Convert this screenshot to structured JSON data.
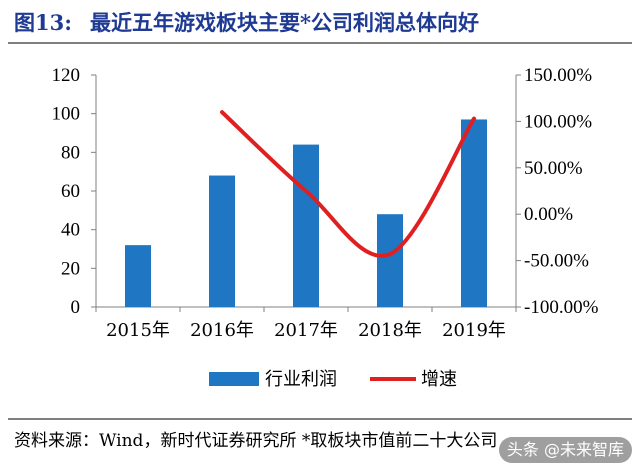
{
  "figure": {
    "number": "图13:",
    "title": "最近五年游戏板块主要*公司利润总体向好",
    "source": "资料来源：Wind，新时代证券研究所  *取板块市值前二十大公司",
    "watermark": "头条 @未来智库"
  },
  "colors": {
    "bar": "#1f77c3",
    "line": "#e02020",
    "title": "#1f3a93"
  },
  "chart_data": {
    "type": "bar",
    "categories": [
      "2015年",
      "2016年",
      "2017年",
      "2018年",
      "2019年"
    ],
    "series": [
      {
        "name": "行业利润",
        "type": "bar",
        "axis": "left",
        "values": [
          32,
          68,
          84,
          48,
          97
        ]
      },
      {
        "name": "增速",
        "type": "line",
        "axis": "right",
        "smooth": true,
        "values": [
          null,
          1.1,
          0.25,
          -0.43,
          1.03
        ]
      }
    ],
    "ylim_left": [
      0,
      120
    ],
    "yticks_left": [
      "0",
      "20",
      "40",
      "60",
      "80",
      "100",
      "120"
    ],
    "ylim_right": [
      -1.0,
      1.5
    ],
    "yticks_right": [
      "-100.00%",
      "-50.00%",
      "0.00%",
      "50.00%",
      "100.00%",
      "150.00%"
    ],
    "grid": false,
    "legend_position": "bottom"
  }
}
